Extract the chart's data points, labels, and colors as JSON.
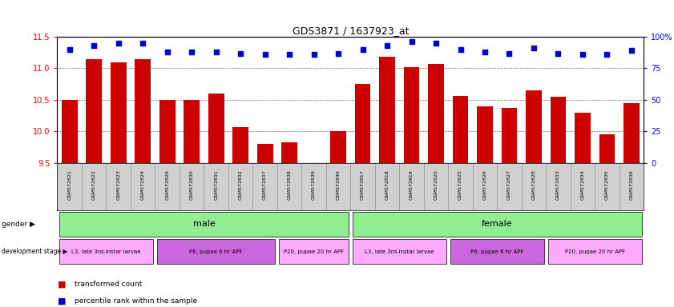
{
  "title": "GDS3871 / 1637923_at",
  "samples": [
    "GSM572821",
    "GSM572822",
    "GSM572823",
    "GSM572824",
    "GSM572829",
    "GSM572830",
    "GSM572831",
    "GSM572832",
    "GSM572837",
    "GSM572838",
    "GSM572839",
    "GSM572840",
    "GSM572817",
    "GSM572818",
    "GSM572819",
    "GSM572820",
    "GSM572825",
    "GSM572826",
    "GSM572827",
    "GSM572828",
    "GSM572833",
    "GSM572834",
    "GSM572835",
    "GSM572836"
  ],
  "bar_values": [
    10.5,
    11.15,
    11.1,
    11.15,
    10.5,
    10.5,
    10.6,
    10.07,
    9.8,
    9.83,
    9.4,
    10.0,
    10.75,
    11.18,
    11.02,
    11.07,
    10.56,
    10.4,
    10.37,
    10.65,
    10.55,
    10.3,
    9.95,
    10.45
  ],
  "percentile_values": [
    90,
    93,
    95,
    95,
    88,
    88,
    88,
    87,
    86,
    86,
    86,
    87,
    90,
    93,
    96,
    95,
    90,
    88,
    87,
    91,
    87,
    86,
    86,
    89
  ],
  "ylim_left": [
    9.5,
    11.5
  ],
  "ylim_right": [
    0,
    100
  ],
  "yticks_left": [
    9.5,
    10.0,
    10.5,
    11.0,
    11.5
  ],
  "yticks_right": [
    0,
    25,
    50,
    75,
    100
  ],
  "bar_color": "#cc0000",
  "dot_color": "#0000cc",
  "dev_regions": [
    {
      "label": "L3, late 3rd-instar larvae",
      "start": 0,
      "end": 3,
      "color": "#ffaaff"
    },
    {
      "label": "P6, pupae 6 hr APF",
      "start": 4,
      "end": 8,
      "color": "#cc66dd"
    },
    {
      "label": "P20, pupae 20 hr APF",
      "start": 9,
      "end": 11,
      "color": "#ffaaff"
    },
    {
      "label": "L3, late 3rd-instar larvae",
      "start": 12,
      "end": 15,
      "color": "#ffaaff"
    },
    {
      "label": "P6, pupae 6 hr APF",
      "start": 16,
      "end": 19,
      "color": "#cc66dd"
    },
    {
      "label": "P20, pupae 20 hr APF",
      "start": 20,
      "end": 23,
      "color": "#ffaaff"
    }
  ],
  "background_color": "#ffffff",
  "fig_width": 8.41,
  "fig_height": 3.84,
  "dpi": 100
}
